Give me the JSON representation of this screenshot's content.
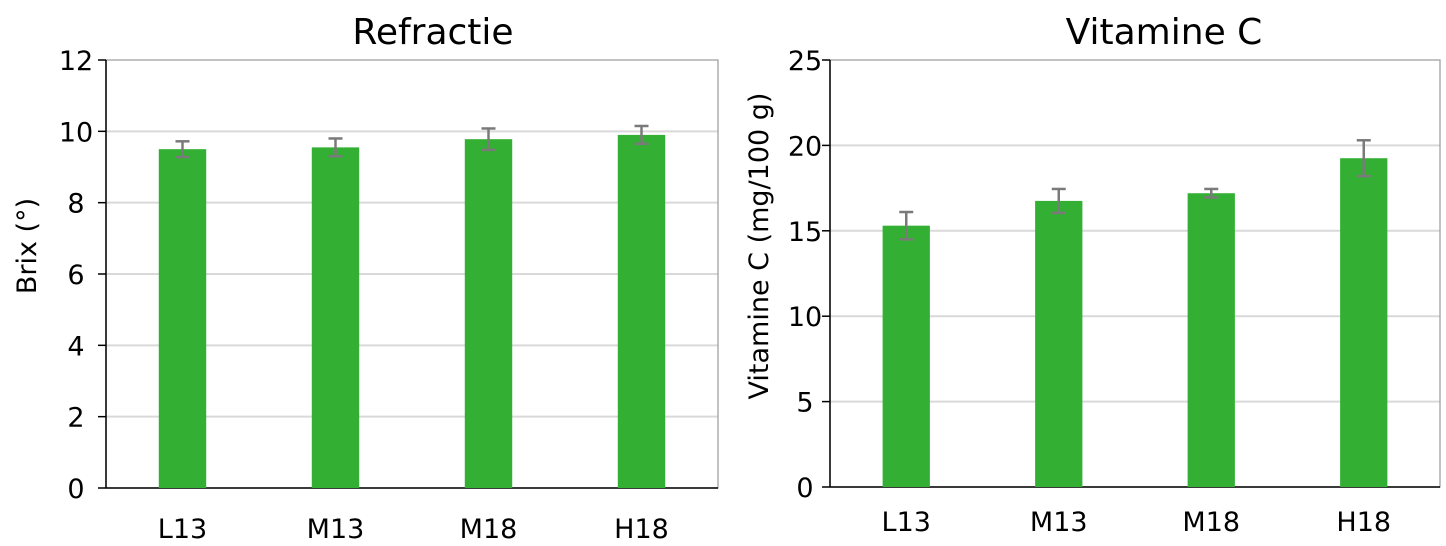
{
  "chart_data": [
    {
      "type": "bar",
      "title": "Refractie",
      "xlabel": "",
      "ylabel": "Brix (°)",
      "categories": [
        "L13",
        "M13",
        "M18",
        "H18"
      ],
      "values": [
        9.5,
        9.55,
        9.78,
        9.9
      ],
      "errors": [
        0.22,
        0.25,
        0.3,
        0.25
      ],
      "ylim": [
        0,
        12
      ],
      "yticks": [
        0,
        2,
        4,
        6,
        8,
        10,
        12
      ],
      "grid": true,
      "legend": "none"
    },
    {
      "type": "bar",
      "title": "Vitamine C",
      "xlabel": "",
      "ylabel": "Vitamine C (mg/100 g)",
      "categories": [
        "L13",
        "M13",
        "M18",
        "H18"
      ],
      "values": [
        15.3,
        16.75,
        17.2,
        19.25
      ],
      "errors": [
        0.8,
        0.7,
        0.25,
        1.05
      ],
      "ylim": [
        0,
        25
      ],
      "yticks": [
        0,
        5,
        10,
        15,
        20,
        25
      ],
      "grid": true,
      "legend": "none"
    }
  ],
  "colors": {
    "bar": "#33b033",
    "error_bar": "#7a7a7a",
    "grid": "#d9d9d9",
    "axis": "#000000"
  }
}
